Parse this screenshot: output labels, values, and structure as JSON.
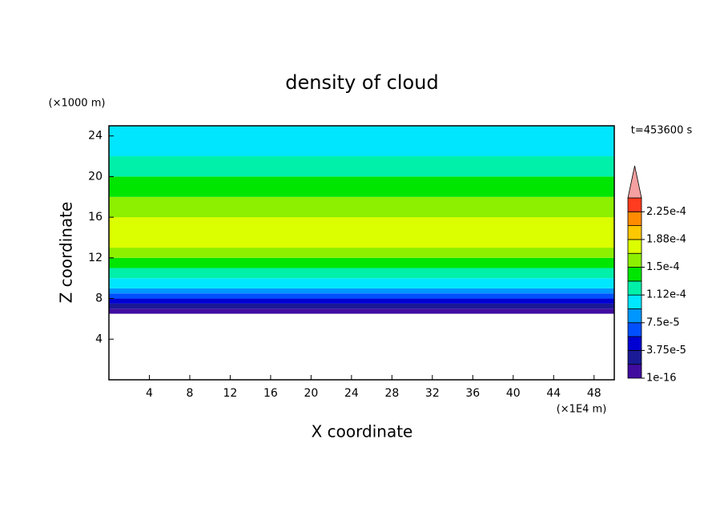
{
  "chart_data": {
    "type": "contour",
    "title": "density of cloud",
    "xlabel": "X coordinate",
    "ylabel": "Z coordinate",
    "x_unit": "(×1E4 m)",
    "y_unit": "(×1000 m)",
    "annotation": "t=453600 s",
    "xlim": [
      0,
      50
    ],
    "ylim": [
      0,
      25
    ],
    "xticks": [
      4,
      8,
      12,
      16,
      20,
      24,
      28,
      32,
      36,
      40,
      44,
      48
    ],
    "yticks": [
      4,
      8,
      12,
      16,
      20,
      24
    ],
    "layers": [
      {
        "z": [
          6.5,
          7
        ],
        "value": 1e-05
      },
      {
        "z": [
          7,
          7.5
        ],
        "value": 3e-05
      },
      {
        "z": [
          7.5,
          8
        ],
        "value": 4.5e-05
      },
      {
        "z": [
          8,
          8.5
        ],
        "value": 6.5e-05
      },
      {
        "z": [
          8.5,
          9
        ],
        "value": 8.5e-05
      },
      {
        "z": [
          9,
          10
        ],
        "value": 0.0001
      },
      {
        "z": [
          10,
          11
        ],
        "value": 0.00012
      },
      {
        "z": [
          11,
          12
        ],
        "value": 0.00014
      },
      {
        "z": [
          12,
          18
        ],
        "value": 0.00016
      },
      {
        "z": [
          13,
          16
        ],
        "value": 0.000175
      },
      {
        "z": [
          18,
          20
        ],
        "value": 0.00014
      },
      {
        "z": [
          20,
          22
        ],
        "value": 0.00012
      },
      {
        "z": [
          22,
          25
        ],
        "value": 0.0001
      }
    ],
    "colorbar": {
      "levels": [
        1e-16,
        1.875e-05,
        3.75e-05,
        5.625e-05,
        7.5e-05,
        9.375e-05,
        0.0001125,
        0.00013125,
        0.00015,
        0.00016875,
        0.0001875,
        0.00020625,
        0.000225,
        0.00024375
      ],
      "colors": [
        "#400ca0",
        "#1a1a96",
        "#0000d2",
        "#0050ff",
        "#0096ff",
        "#00e6ff",
        "#00f0aa",
        "#00e600",
        "#8cf000",
        "#dcff00",
        "#ffc800",
        "#ff8c00",
        "#ff3c1e"
      ],
      "extend_color": "#f4a0a0",
      "ticks": [
        1e-16,
        {
          "value": 3.75e-05,
          "label": "3.75e-5"
        },
        {
          "value": 7.5e-05,
          "label": "7.5e-5"
        },
        {
          "value": 0.0001125,
          "label": "1.12e-4"
        },
        {
          "value": 0.00015,
          "label": "1.5e-4"
        },
        {
          "value": 0.0001875,
          "label": "1.88e-4"
        },
        {
          "value": 0.000225,
          "label": "2.25e-4"
        }
      ]
    }
  }
}
